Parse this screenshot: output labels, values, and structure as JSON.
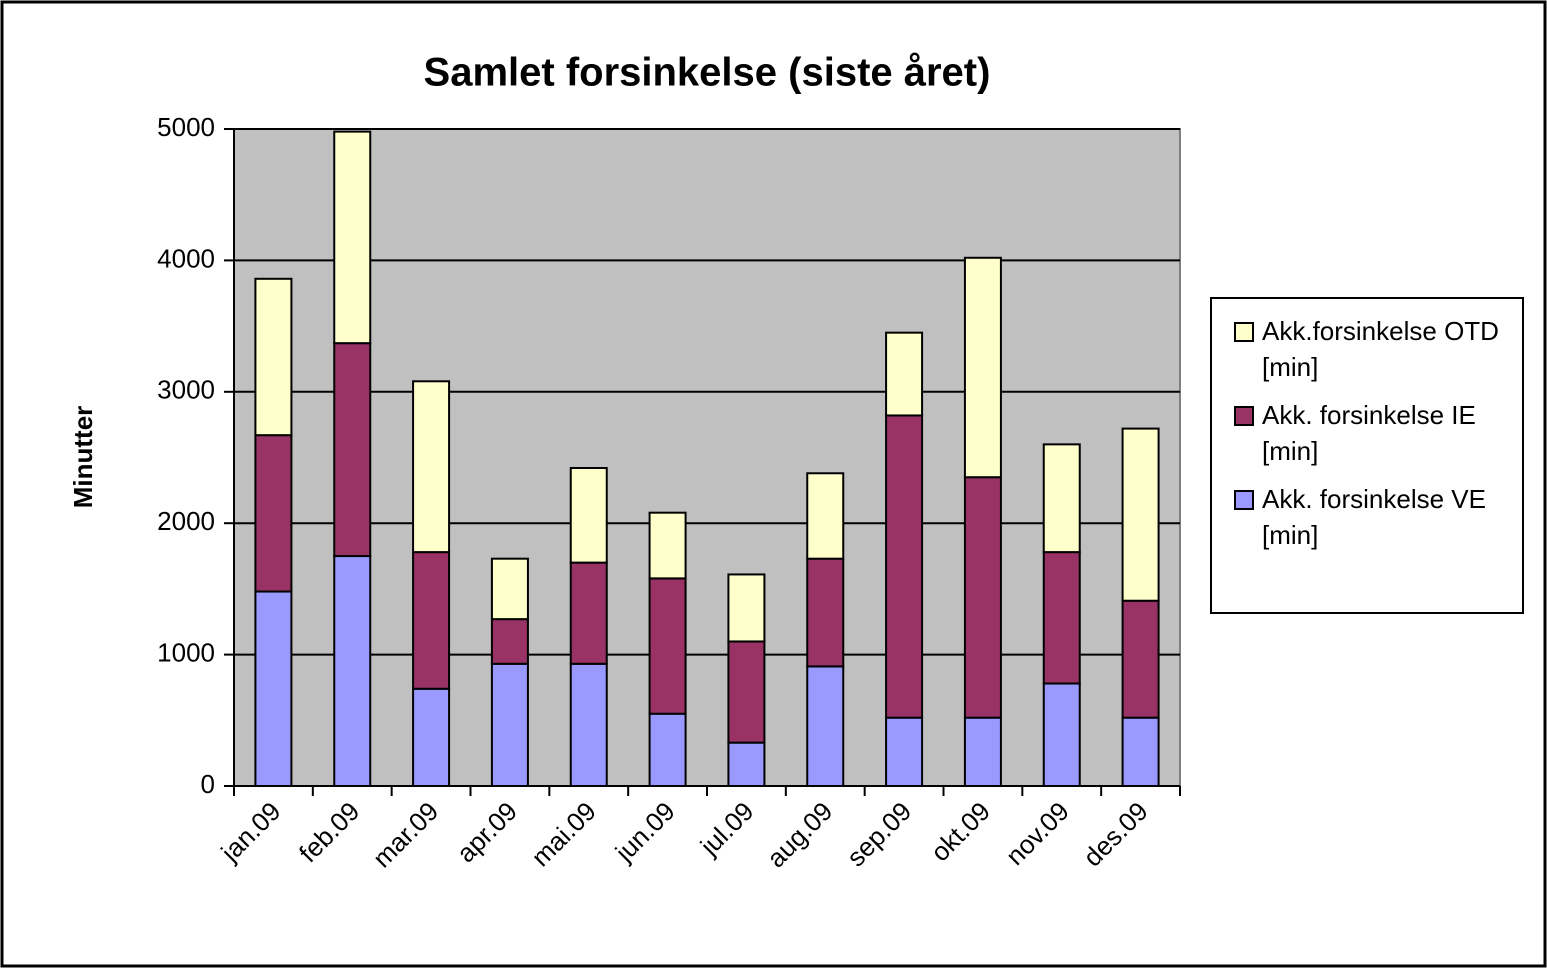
{
  "chart_data": {
    "type": "bar",
    "stacked": true,
    "title": "Samlet forsinkelse (siste året)",
    "y_label": "Minutter",
    "categories": [
      "jan.09",
      "feb.09",
      "mar.09",
      "apr.09",
      "mai.09",
      "jun.09",
      "jul.09",
      "aug.09",
      "sep.09",
      "okt.09",
      "nov.09",
      "des.09"
    ],
    "series": [
      {
        "name": "Akk. forsinkelse VE [min]",
        "color": "#9999ff",
        "values": [
          1480,
          1750,
          740,
          930,
          930,
          550,
          330,
          910,
          520,
          520,
          780,
          520
        ]
      },
      {
        "name": "Akk. forsinkelse IE [min]",
        "color": "#993366",
        "values": [
          1190,
          1620,
          1040,
          340,
          770,
          1030,
          770,
          820,
          2300,
          1830,
          1000,
          890
        ]
      },
      {
        "name": "Akk.forsinkelse OTD [min]",
        "color": "#ffffcc",
        "values": [
          1190,
          1610,
          1300,
          460,
          720,
          500,
          510,
          650,
          630,
          1670,
          820,
          1310
        ]
      }
    ],
    "ylim": [
      0,
      5000
    ],
    "yticks": [
      0,
      1000,
      2000,
      3000,
      4000,
      5000
    ],
    "grid": true,
    "plot_background": "#c0c0c0",
    "legend": "right"
  }
}
